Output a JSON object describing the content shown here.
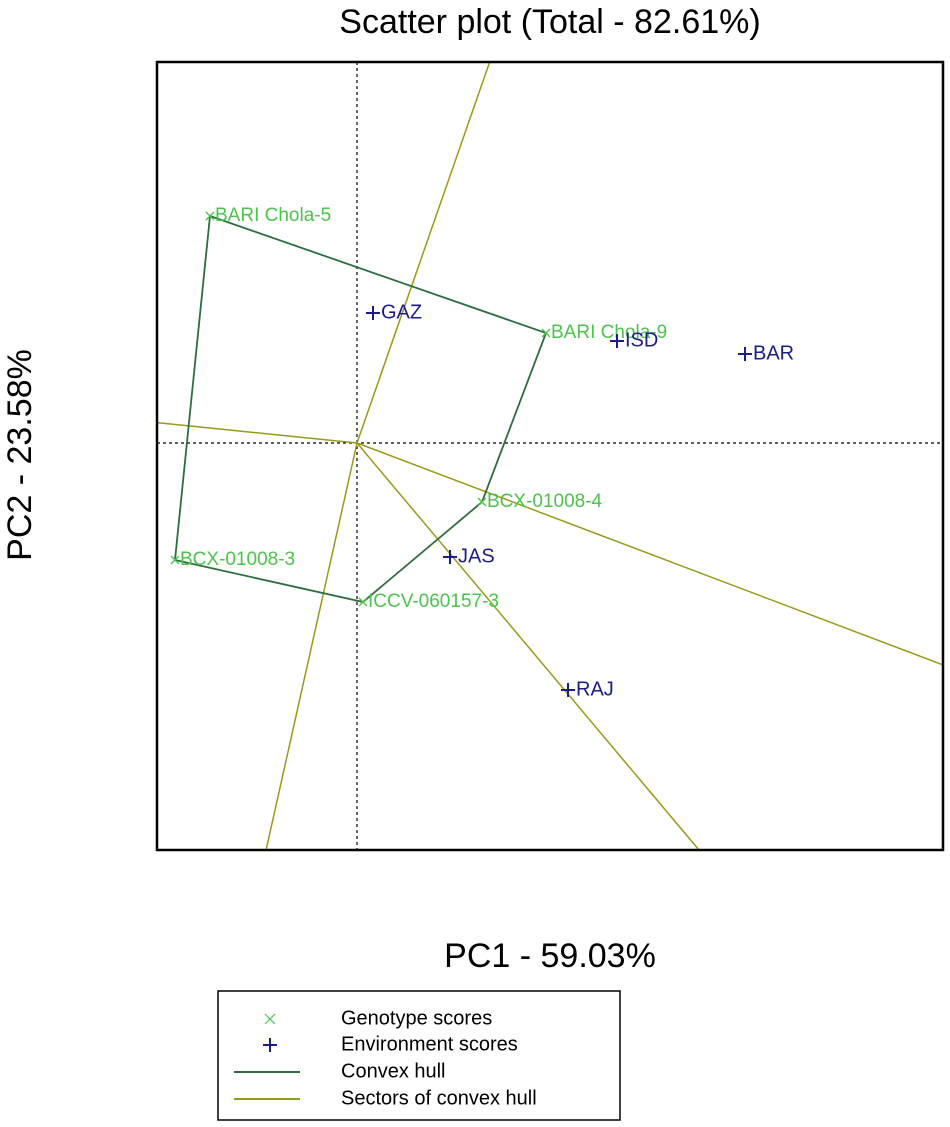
{
  "chart_data": {
    "type": "scatter",
    "title": "Scatter plot (Total - 82.61%)",
    "x_label": "PC1 - 59.03%",
    "y_label": "PC2 - 23.58%",
    "xlim": [
      -2.0,
      5.86
    ],
    "ylim": [
      -4.07,
      3.81
    ],
    "series": [
      {
        "name": "Genotype scores",
        "color": "#4cc44c",
        "marker": "x",
        "labels": [
          "BARI Chola-5",
          "BARI Chola-9",
          "BCX-01008-4",
          "BCX-01008-3",
          "ICCV-060157-3"
        ],
        "x": [
          -1.47,
          1.89,
          1.25,
          -1.82,
          0.06
        ],
        "values": [
          2.27,
          1.1,
          -0.59,
          -1.17,
          -1.59
        ]
      },
      {
        "name": "Environment scores",
        "color": "#1c1c8c",
        "marker": "+",
        "labels": [
          "GAZ",
          "ISD",
          "BAR",
          "JAS",
          "RAJ"
        ],
        "x": [
          0.16,
          2.6,
          3.88,
          0.93,
          2.11
        ],
        "values": [
          1.3,
          1.02,
          0.89,
          -1.14,
          -2.47
        ]
      }
    ],
    "hull": {
      "name": "Convex hull",
      "color": "#2e6e3e"
    },
    "sectors": {
      "name": "Sectors of convex hull",
      "color": "#9a9a1a"
    }
  }
}
